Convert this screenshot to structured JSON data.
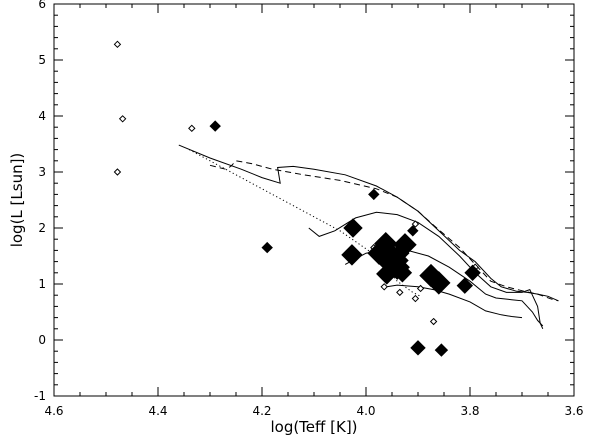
{
  "chart_data": {
    "type": "scatter",
    "xlabel": "log(Teff [K])",
    "ylabel": "log(L [Lsun])",
    "xlim": [
      4.6,
      3.6
    ],
    "ylim": [
      -1,
      6
    ],
    "x_ticks": [
      "4.6",
      "4.4",
      "4.2",
      "4.0",
      "3.8",
      "3.6"
    ],
    "y_ticks": [
      "-1",
      "0",
      "1",
      "2",
      "3",
      "4",
      "5",
      "6"
    ],
    "grid": false,
    "filled_diamonds": [
      {
        "x": 4.29,
        "y": 3.82,
        "size": 1.0
      },
      {
        "x": 4.19,
        "y": 1.65,
        "size": 1.0
      },
      {
        "x": 3.985,
        "y": 2.6,
        "size": 1.0
      },
      {
        "x": 4.025,
        "y": 2.0,
        "size": 1.8
      },
      {
        "x": 4.027,
        "y": 1.52,
        "size": 2.0
      },
      {
        "x": 3.975,
        "y": 1.55,
        "size": 2.2
      },
      {
        "x": 3.962,
        "y": 1.72,
        "size": 2.2
      },
      {
        "x": 3.95,
        "y": 1.42,
        "size": 3.2
      },
      {
        "x": 3.94,
        "y": 1.3,
        "size": 2.4
      },
      {
        "x": 3.96,
        "y": 1.18,
        "size": 2.0
      },
      {
        "x": 3.925,
        "y": 1.7,
        "size": 2.2
      },
      {
        "x": 3.935,
        "y": 1.55,
        "size": 1.8
      },
      {
        "x": 3.93,
        "y": 1.2,
        "size": 1.8
      },
      {
        "x": 3.91,
        "y": 1.95,
        "size": 1.0
      },
      {
        "x": 3.875,
        "y": 1.15,
        "size": 2.2
      },
      {
        "x": 3.86,
        "y": 1.02,
        "size": 2.2
      },
      {
        "x": 3.795,
        "y": 1.2,
        "size": 1.5
      },
      {
        "x": 3.81,
        "y": 0.97,
        "size": 1.5
      },
      {
        "x": 3.9,
        "y": -0.14,
        "size": 1.4
      },
      {
        "x": 3.855,
        "y": -0.18,
        "size": 1.2
      }
    ],
    "open_diamonds": [
      {
        "x": 4.478,
        "y": 5.28
      },
      {
        "x": 4.468,
        "y": 3.95
      },
      {
        "x": 4.478,
        "y": 3.0
      },
      {
        "x": 4.335,
        "y": 3.78
      },
      {
        "x": 3.905,
        "y": 2.07
      },
      {
        "x": 3.92,
        "y": 1.68
      },
      {
        "x": 3.895,
        "y": 0.92
      },
      {
        "x": 3.905,
        "y": 0.74
      },
      {
        "x": 3.935,
        "y": 0.85
      },
      {
        "x": 3.87,
        "y": 0.33
      },
      {
        "x": 3.985,
        "y": 1.65
      },
      {
        "x": 3.965,
        "y": 0.95
      },
      {
        "x": 3.855,
        "y": 0.93
      },
      {
        "x": 3.79,
        "y": 1.3
      }
    ],
    "tracks": [
      {
        "style": "dashed",
        "points": [
          [
            4.3,
            3.12
          ],
          [
            4.27,
            3.05
          ],
          [
            4.26,
            3.1
          ],
          [
            4.25,
            3.2
          ],
          [
            4.22,
            3.15
          ],
          [
            4.18,
            3.05
          ],
          [
            4.12,
            2.95
          ],
          [
            4.05,
            2.85
          ],
          [
            3.98,
            2.7
          ],
          [
            3.94,
            2.55
          ],
          [
            3.9,
            2.3
          ],
          [
            3.87,
            2.05
          ],
          [
            3.82,
            1.65
          ],
          [
            3.79,
            1.35
          ],
          [
            3.76,
            1.05
          ],
          [
            3.73,
            0.95
          ],
          [
            3.7,
            0.88
          ],
          [
            3.67,
            0.82
          ],
          [
            3.64,
            0.72
          ],
          [
            3.63,
            0.7
          ]
        ]
      },
      {
        "style": "solid",
        "points": [
          [
            4.36,
            3.48
          ],
          [
            4.3,
            3.25
          ],
          [
            4.24,
            3.05
          ],
          [
            4.2,
            2.9
          ],
          [
            4.165,
            2.8
          ],
          [
            4.17,
            3.08
          ],
          [
            4.14,
            3.1
          ],
          [
            4.1,
            3.05
          ],
          [
            4.04,
            2.95
          ],
          [
            3.98,
            2.75
          ],
          [
            3.94,
            2.55
          ],
          [
            3.9,
            2.3
          ],
          [
            3.86,
            1.95
          ],
          [
            3.82,
            1.6
          ],
          [
            3.79,
            1.4
          ],
          [
            3.76,
            1.1
          ],
          [
            3.74,
            0.95
          ],
          [
            3.71,
            0.87
          ],
          [
            3.69,
            0.85
          ],
          [
            3.67,
            0.82
          ],
          [
            3.65,
            0.78
          ],
          [
            3.63,
            0.7
          ]
        ]
      },
      {
        "style": "solid",
        "points": [
          [
            4.11,
            2.0
          ],
          [
            4.09,
            1.85
          ],
          [
            4.06,
            1.95
          ],
          [
            4.02,
            2.18
          ],
          [
            3.98,
            2.28
          ],
          [
            3.94,
            2.24
          ],
          [
            3.9,
            2.1
          ],
          [
            3.86,
            1.85
          ],
          [
            3.82,
            1.5
          ],
          [
            3.79,
            1.2
          ],
          [
            3.76,
            0.95
          ],
          [
            3.73,
            0.85
          ],
          [
            3.7,
            0.85
          ],
          [
            3.685,
            0.9
          ],
          [
            3.67,
            0.6
          ],
          [
            3.665,
            0.3
          ],
          [
            3.66,
            0.2
          ]
        ]
      },
      {
        "style": "solid",
        "points": [
          [
            4.04,
            1.35
          ],
          [
            4.0,
            1.55
          ],
          [
            3.96,
            1.62
          ],
          [
            3.92,
            1.6
          ],
          [
            3.88,
            1.5
          ],
          [
            3.84,
            1.3
          ],
          [
            3.8,
            1.05
          ],
          [
            3.77,
            0.82
          ],
          [
            3.75,
            0.75
          ],
          [
            3.72,
            0.72
          ],
          [
            3.7,
            0.7
          ],
          [
            3.68,
            0.5
          ],
          [
            3.67,
            0.35
          ],
          [
            3.66,
            0.25
          ]
        ]
      },
      {
        "style": "solid",
        "points": [
          [
            3.96,
            0.95
          ],
          [
            3.94,
            0.98
          ],
          [
            3.9,
            0.95
          ],
          [
            3.87,
            0.9
          ],
          [
            3.84,
            0.82
          ],
          [
            3.8,
            0.68
          ],
          [
            3.77,
            0.52
          ],
          [
            3.74,
            0.45
          ],
          [
            3.72,
            0.42
          ],
          [
            3.7,
            0.4
          ]
        ]
      },
      {
        "style": "dotted",
        "points": [
          [
            4.34,
            3.4
          ],
          [
            4.25,
            2.95
          ],
          [
            4.15,
            2.45
          ],
          [
            4.05,
            1.95
          ],
          [
            3.98,
            1.5
          ],
          [
            3.94,
            1.05
          ],
          [
            3.91,
            0.85
          ],
          [
            3.895,
            0.78
          ]
        ]
      }
    ]
  }
}
